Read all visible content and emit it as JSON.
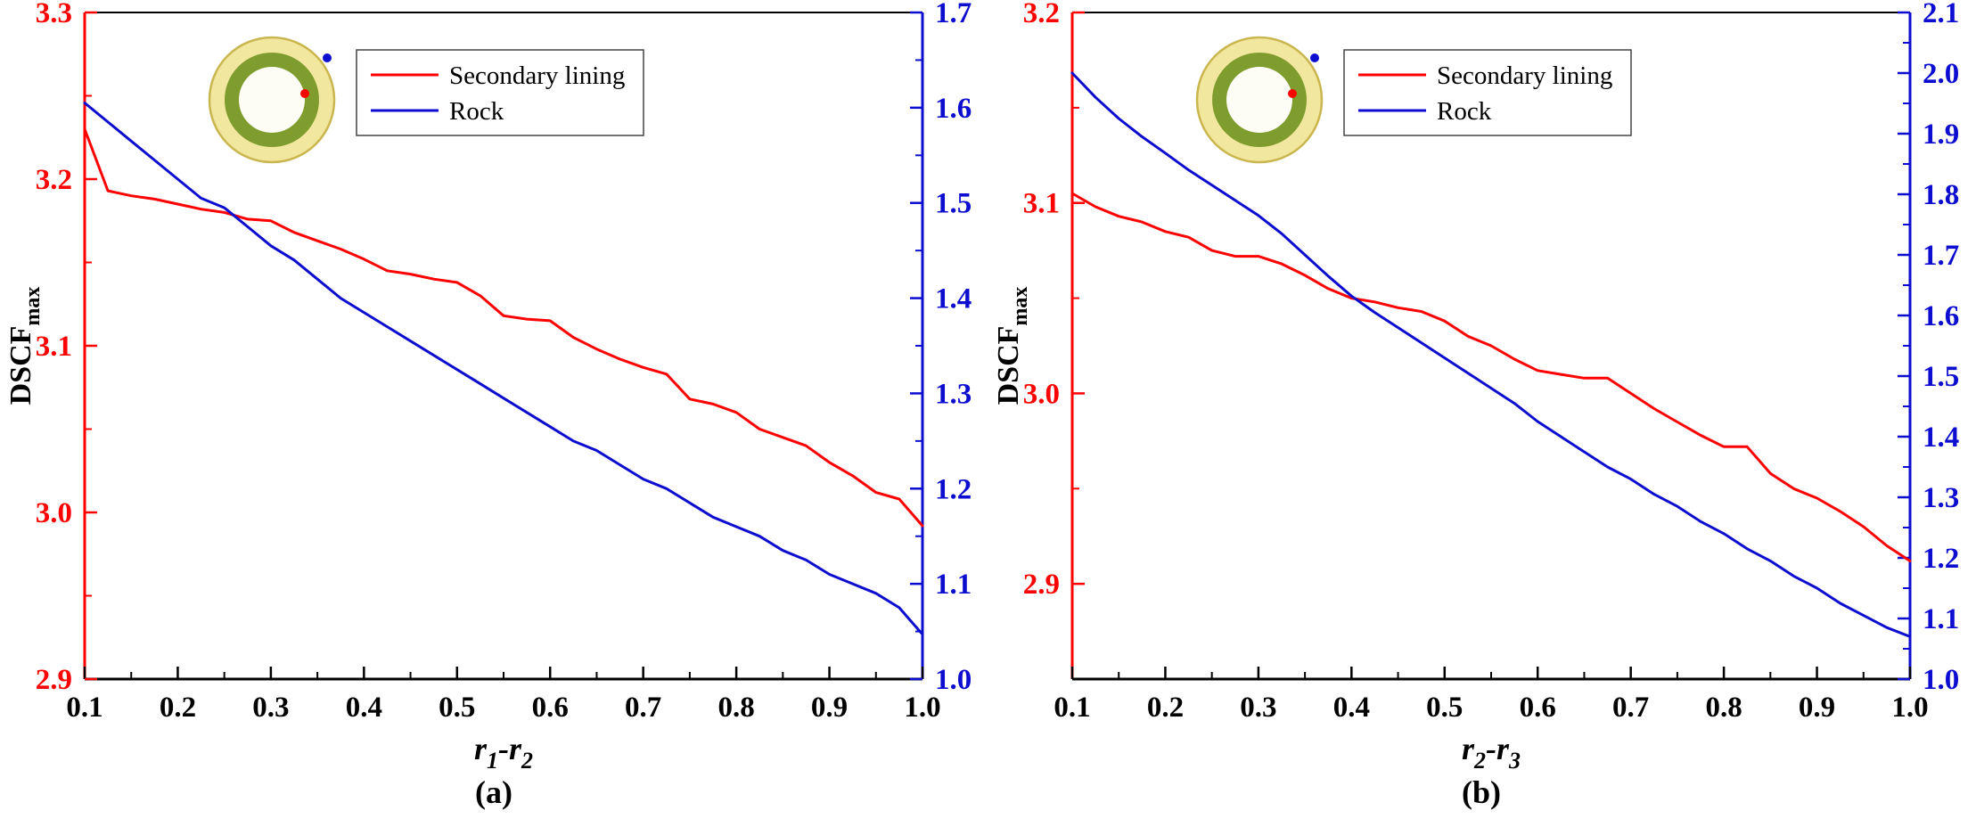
{
  "figure": {
    "background": "#ffffff"
  },
  "chart_data": [
    {
      "type": "line",
      "panel": "a",
      "caption": "(a)",
      "x_axis": {
        "label": "r1-r2",
        "label_segments": [
          {
            "t": "r",
            "sub": false
          },
          {
            "t": "1",
            "sub": true
          },
          {
            "t": "-",
            "sub": false
          },
          {
            "t": "r",
            "sub": false
          },
          {
            "t": "2",
            "sub": true
          }
        ],
        "min": 0.1,
        "max": 1.0,
        "ticks": [
          "0.1",
          "0.2",
          "0.3",
          "0.4",
          "0.5",
          "0.6",
          "0.7",
          "0.8",
          "0.9",
          "1.0"
        ]
      },
      "y_left": {
        "label": "DSCFmax",
        "label_segments": [
          {
            "t": "DSCF",
            "sub": false
          },
          {
            "t": "max",
            "sub": true
          }
        ],
        "color": "#ff0000",
        "min": 2.9,
        "max": 3.3,
        "ticks": [
          "2.9",
          "3.0",
          "3.1",
          "3.2",
          "3.3"
        ]
      },
      "y_right": {
        "label": "",
        "color": "#0d0dd0",
        "min": 1.0,
        "max": 1.7,
        "ticks": [
          "1.0",
          "1.1",
          "1.2",
          "1.3",
          "1.4",
          "1.5",
          "1.6",
          "1.7"
        ]
      },
      "x_values": [
        0.1,
        0.125,
        0.15,
        0.175,
        0.2,
        0.225,
        0.25,
        0.275,
        0.3,
        0.325,
        0.35,
        0.375,
        0.4,
        0.425,
        0.45,
        0.475,
        0.5,
        0.525,
        0.55,
        0.575,
        0.6,
        0.625,
        0.65,
        0.675,
        0.7,
        0.725,
        0.75,
        0.775,
        0.8,
        0.825,
        0.85,
        0.875,
        0.9,
        0.925,
        0.95,
        0.975,
        1.0
      ],
      "series": [
        {
          "name": "Secondary lining",
          "color": "#ff0000",
          "axis": "left",
          "values": [
            3.23,
            3.193,
            3.19,
            3.188,
            3.185,
            3.182,
            3.18,
            3.176,
            3.175,
            3.168,
            3.163,
            3.158,
            3.152,
            3.145,
            3.143,
            3.14,
            3.138,
            3.13,
            3.118,
            3.116,
            3.115,
            3.105,
            3.098,
            3.092,
            3.087,
            3.083,
            3.068,
            3.065,
            3.06,
            3.05,
            3.045,
            3.04,
            3.03,
            3.022,
            3.012,
            3.008,
            2.992
          ]
        },
        {
          "name": "Rock",
          "color": "#0d0dd0",
          "axis": "right",
          "values": [
            1.605,
            1.585,
            1.565,
            1.545,
            1.525,
            1.505,
            1.495,
            1.475,
            1.455,
            1.44,
            1.42,
            1.4,
            1.385,
            1.37,
            1.355,
            1.34,
            1.325,
            1.31,
            1.295,
            1.28,
            1.265,
            1.25,
            1.24,
            1.225,
            1.21,
            1.2,
            1.185,
            1.17,
            1.16,
            1.15,
            1.135,
            1.125,
            1.11,
            1.1,
            1.09,
            1.075,
            1.047
          ]
        }
      ],
      "legend": {
        "position": "top-center"
      },
      "inset": {
        "name": "lined-tunnel-cross-section",
        "outer_color": "#f2e79f",
        "outer_edge_color": "#c9b64f",
        "ring_color": "#7f9d2e",
        "center_color": "#fdfdf6",
        "red_dot_color": "#ff0000",
        "blue_dot_color": "#0d0dd0"
      }
    },
    {
      "type": "line",
      "panel": "b",
      "caption": "(b)",
      "x_axis": {
        "label": "r2-r3",
        "label_segments": [
          {
            "t": "r",
            "sub": false
          },
          {
            "t": "2",
            "sub": true
          },
          {
            "t": "-",
            "sub": false
          },
          {
            "t": "r",
            "sub": false
          },
          {
            "t": "3",
            "sub": true
          }
        ],
        "min": 0.1,
        "max": 1.0,
        "ticks": [
          "0.1",
          "0.2",
          "0.3",
          "0.4",
          "0.5",
          "0.6",
          "0.7",
          "0.8",
          "0.9",
          "1.0"
        ]
      },
      "y_left": {
        "label": "DSCFmax",
        "label_segments": [
          {
            "t": "DSCF",
            "sub": false
          },
          {
            "t": "max",
            "sub": true
          }
        ],
        "color": "#ff0000",
        "min": 2.85,
        "max": 3.2,
        "ticks": [
          "2.9",
          "3.0",
          "3.1",
          "3.2"
        ]
      },
      "y_right": {
        "label": "",
        "color": "#0d0dd0",
        "min": 1.0,
        "max": 2.1,
        "ticks": [
          "1.0",
          "1.1",
          "1.2",
          "1.3",
          "1.4",
          "1.5",
          "1.6",
          "1.7",
          "1.8",
          "1.9",
          "2.0",
          "2.1"
        ]
      },
      "x_values": [
        0.1,
        0.125,
        0.15,
        0.175,
        0.2,
        0.225,
        0.25,
        0.275,
        0.3,
        0.325,
        0.35,
        0.375,
        0.4,
        0.425,
        0.45,
        0.475,
        0.5,
        0.525,
        0.55,
        0.575,
        0.6,
        0.625,
        0.65,
        0.675,
        0.7,
        0.725,
        0.75,
        0.775,
        0.8,
        0.825,
        0.85,
        0.875,
        0.9,
        0.925,
        0.95,
        0.975,
        1.0
      ],
      "series": [
        {
          "name": "Secondary lining",
          "color": "#ff0000",
          "axis": "left",
          "values": [
            3.105,
            3.098,
            3.093,
            3.09,
            3.085,
            3.082,
            3.075,
            3.072,
            3.072,
            3.068,
            3.062,
            3.055,
            3.05,
            3.048,
            3.045,
            3.043,
            3.038,
            3.03,
            3.025,
            3.018,
            3.012,
            3.01,
            3.008,
            3.008,
            3.0,
            2.992,
            2.985,
            2.978,
            2.972,
            2.972,
            2.958,
            2.95,
            2.945,
            2.938,
            2.93,
            2.92,
            2.912
          ]
        },
        {
          "name": "Rock",
          "color": "#0d0dd0",
          "axis": "right",
          "values": [
            2.0,
            1.96,
            1.925,
            1.895,
            1.868,
            1.84,
            1.815,
            1.79,
            1.765,
            1.735,
            1.7,
            1.665,
            1.632,
            1.605,
            1.58,
            1.555,
            1.53,
            1.505,
            1.48,
            1.455,
            1.425,
            1.4,
            1.375,
            1.35,
            1.33,
            1.305,
            1.285,
            1.26,
            1.24,
            1.215,
            1.195,
            1.17,
            1.15,
            1.125,
            1.105,
            1.085,
            1.07
          ]
        }
      ],
      "legend": {
        "position": "top-center"
      },
      "inset": {
        "name": "lined-tunnel-cross-section",
        "outer_color": "#f2e79f",
        "outer_edge_color": "#c9b64f",
        "ring_color": "#7f9d2e",
        "center_color": "#fdfdf6",
        "red_dot_color": "#ff0000",
        "blue_dot_color": "#0d0dd0"
      }
    }
  ]
}
